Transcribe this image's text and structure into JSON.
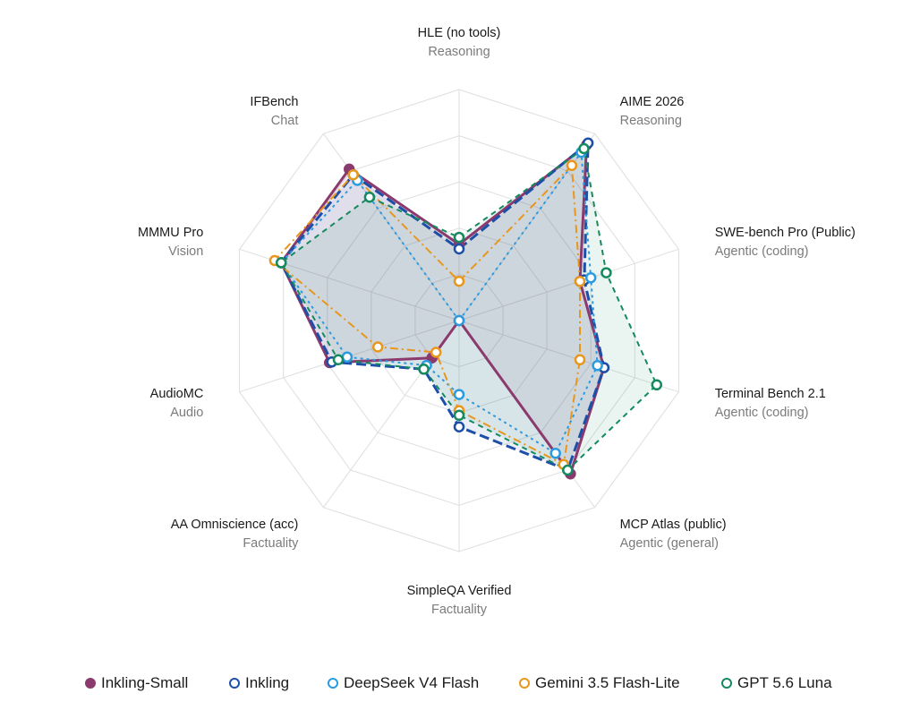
{
  "chart_data": {
    "type": "radar",
    "axes": [
      {
        "name": "HLE (no tools)",
        "category": "Reasoning"
      },
      {
        "name": "AIME 2026",
        "category": "Reasoning"
      },
      {
        "name": "SWE-bench Pro (Public)",
        "category": "Agentic (coding)"
      },
      {
        "name": "Terminal Bench 2.1",
        "category": "Agentic (coding)"
      },
      {
        "name": "MCP Atlas (public)",
        "category": "Agentic (general)"
      },
      {
        "name": "SimpleQA Verified",
        "category": "Factuality"
      },
      {
        "name": "AA Omniscience (acc)",
        "category": "Factuality"
      },
      {
        "name": "AudioMC",
        "category": "Audio"
      },
      {
        "name": "MMMU Pro",
        "category": "Vision"
      },
      {
        "name": "IFBench",
        "category": "Chat"
      }
    ],
    "range": [
      0,
      1
    ],
    "grid_levels": 5,
    "series": [
      {
        "name": "Inkling-Small",
        "color": "#8b3a6e",
        "dash": "solid",
        "fill": "#8b3a6e",
        "marker": "filled",
        "values": [
          0.33,
          0.94,
          0.55,
          0.66,
          0.82,
          0.0,
          0.2,
          0.59,
          0.81,
          0.81
        ]
      },
      {
        "name": "Inkling",
        "color": "#1d4fa8",
        "dash": "longdash",
        "fill": "#1d4fa8",
        "marker": "open",
        "values": [
          0.31,
          0.95,
          0.57,
          0.66,
          0.8,
          0.46,
          0.26,
          0.58,
          0.81,
          0.78
        ]
      },
      {
        "name": "DeepSeek V4 Flash",
        "color": "#2b9be0",
        "dash": "dotted",
        "fill": "none",
        "marker": "open",
        "values": [
          0.0,
          0.9,
          0.6,
          0.63,
          0.71,
          0.32,
          0.24,
          0.51,
          0.81,
          0.75
        ]
      },
      {
        "name": "Gemini 3.5 Flash-Lite",
        "color": "#e8961c",
        "dash": "dashdot",
        "fill": "none",
        "marker": "open",
        "values": [
          0.17,
          0.83,
          0.55,
          0.55,
          0.77,
          0.39,
          0.17,
          0.37,
          0.84,
          0.78
        ]
      },
      {
        "name": "GPT 5.6 Luna",
        "color": "#148a5e",
        "dash": "dashed",
        "fill": "#148a5e",
        "marker": "open",
        "values": [
          0.36,
          0.92,
          0.67,
          0.9,
          0.8,
          0.41,
          0.26,
          0.55,
          0.81,
          0.66
        ]
      }
    ]
  }
}
